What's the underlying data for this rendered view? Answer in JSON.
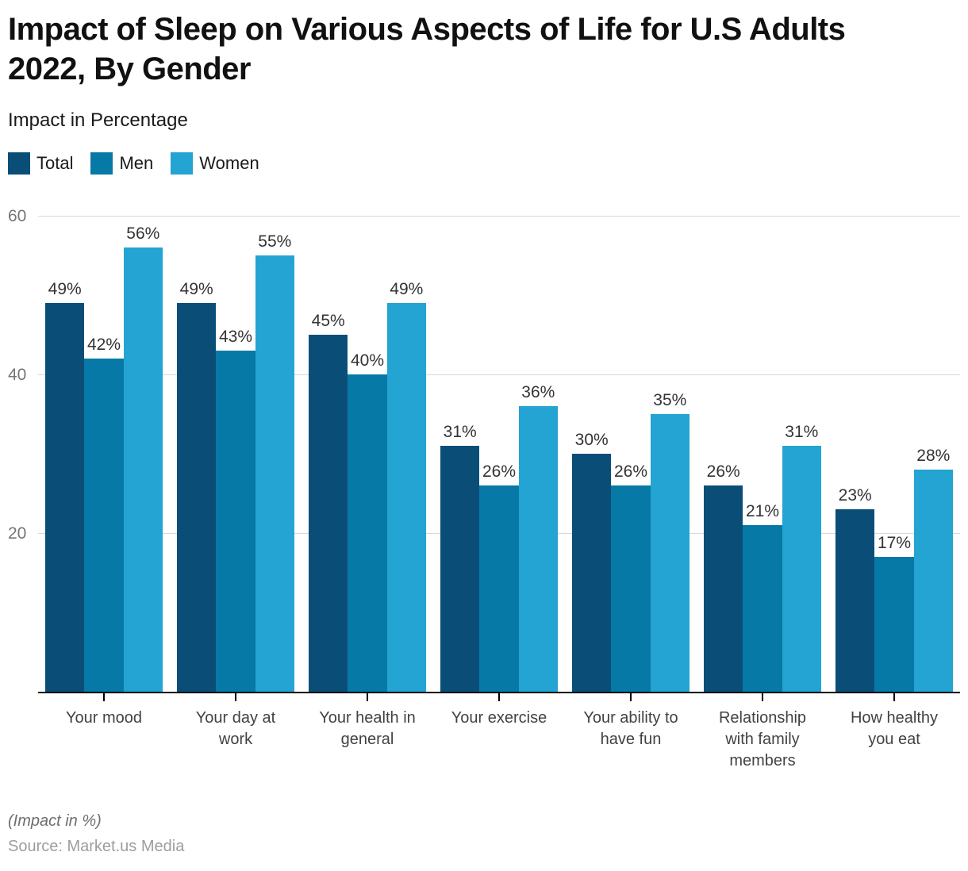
{
  "header": {
    "title": "Impact of Sleep on Various Aspects of Life for U.S Adults\n2022, By Gender",
    "subtitle": "Impact in Percentage"
  },
  "legend": {
    "items": [
      {
        "label": "Total",
        "color": "#0A4E78"
      },
      {
        "label": "Men",
        "color": "#0679A6"
      },
      {
        "label": "Women",
        "color": "#23A4D2"
      }
    ]
  },
  "chart_data": {
    "type": "bar",
    "title": "Impact of Sleep on Various Aspects of Life for U.S Adults 2022, By Gender",
    "subtitle": "Impact in Percentage",
    "categories": [
      "Your mood",
      "Your day at work",
      "Your health in general",
      "Your exercise",
      "Your ability to have fun",
      "Relationship with family members",
      "How healthy you eat"
    ],
    "series": [
      {
        "name": "Total",
        "color": "#0A4E78",
        "values": [
          49,
          49,
          45,
          31,
          30,
          26,
          23
        ]
      },
      {
        "name": "Men",
        "color": "#0679A6",
        "values": [
          42,
          43,
          40,
          26,
          26,
          21,
          17
        ]
      },
      {
        "name": "Women",
        "color": "#23A4D2",
        "values": [
          56,
          55,
          49,
          36,
          35,
          31,
          28
        ]
      }
    ],
    "value_suffix": "%",
    "data_labels": true,
    "ylim": [
      0,
      60
    ],
    "y_ticks": [
      20,
      40,
      60
    ],
    "grid": true,
    "legend_position": "top-left",
    "gridline_color": "#d9d9d9",
    "axis_color": "#000000"
  },
  "footer": {
    "note": "(Impact in %)",
    "source": "Source: Market.us Media"
  }
}
